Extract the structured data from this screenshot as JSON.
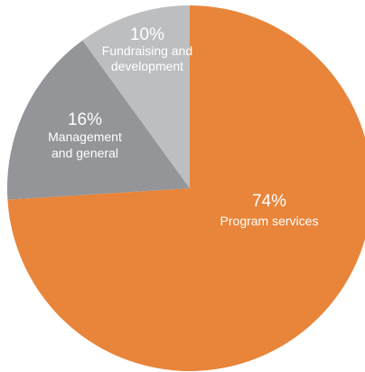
{
  "chart_data": {
    "type": "pie",
    "start_angle_deg": 0,
    "direction": "clockwise",
    "slices": [
      {
        "label_lines": [
          "Program services"
        ],
        "value": 74,
        "percent_label": "74%",
        "color": "#E8853A"
      },
      {
        "label_lines": [
          "Management",
          "and general"
        ],
        "value": 16,
        "percent_label": "16%",
        "color": "#939598"
      },
      {
        "label_lines": [
          "Fundraising and",
          "development"
        ],
        "value": 10,
        "percent_label": "10%",
        "color": "#BCBEC0"
      }
    ]
  }
}
